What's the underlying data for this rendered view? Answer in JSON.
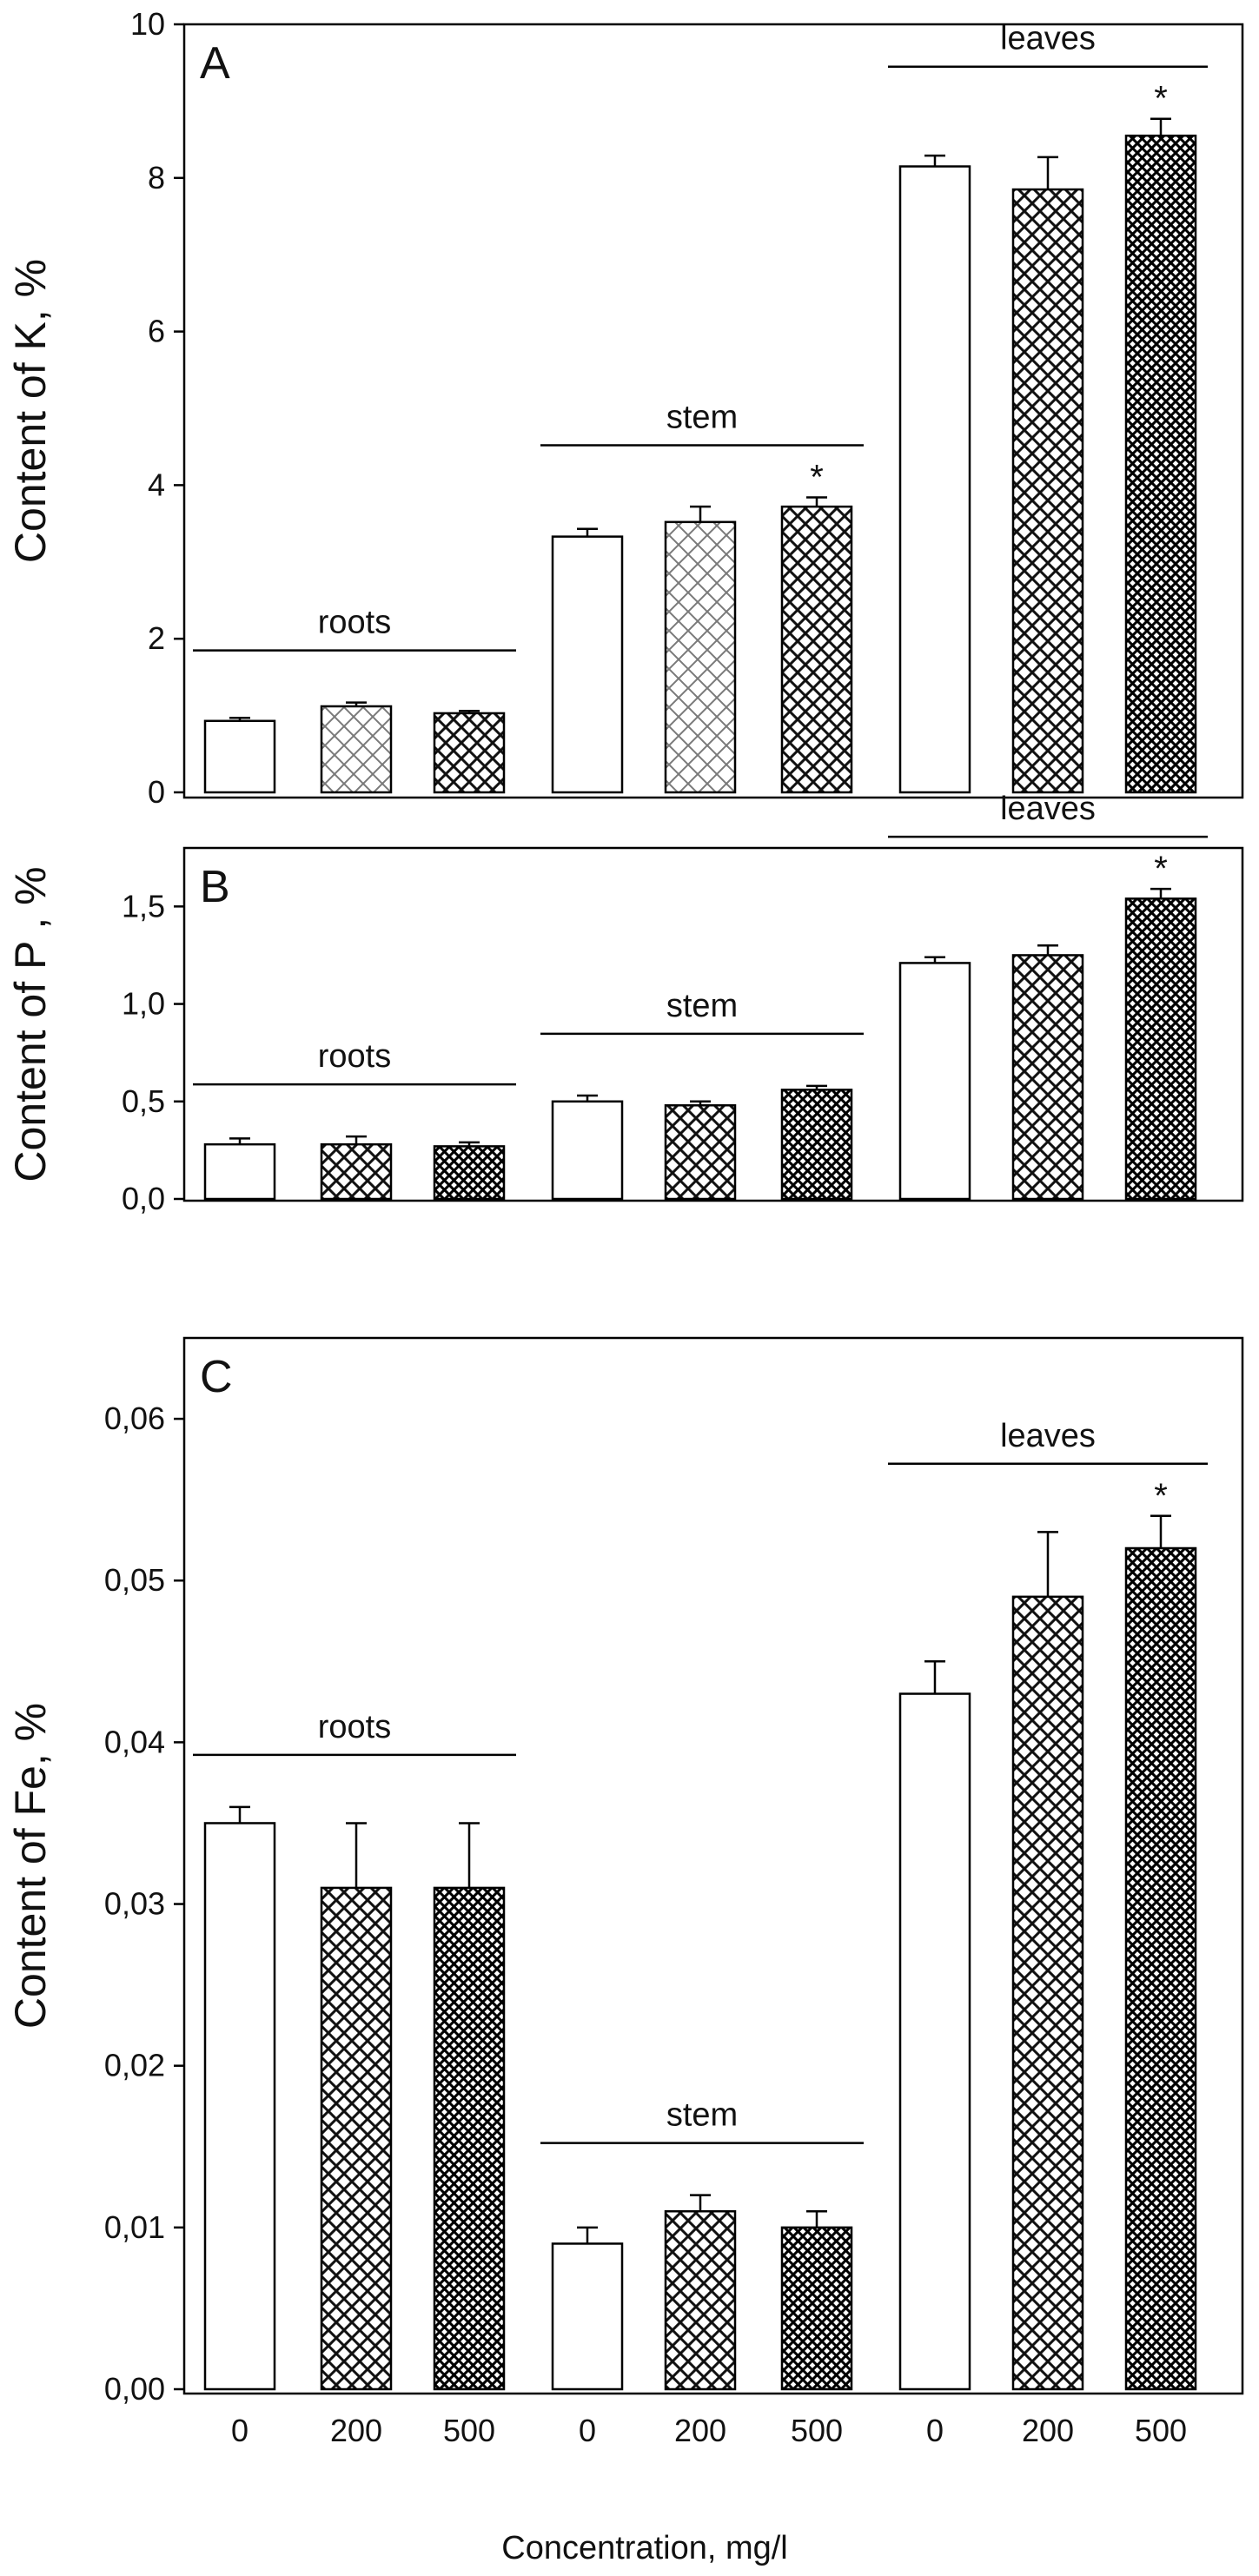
{
  "figure": {
    "x_axis_title": "Concentration, mg/l",
    "x_tick_labels": [
      "0",
      "200",
      "500",
      "0",
      "200",
      "500",
      "0",
      "200",
      "500"
    ],
    "colors": {
      "ink": "#000000",
      "bar_fill": "#ffffff"
    }
  },
  "chart_data": [
    {
      "type": "bar",
      "panel": "A",
      "ylabel": "Content of K, %",
      "ylim": [
        0,
        10
      ],
      "yticks": [
        0,
        2,
        4,
        6,
        8,
        10
      ],
      "ytick_labels": [
        "0",
        "2",
        "4",
        "6",
        "8",
        "10"
      ],
      "groups": [
        {
          "label": "roots",
          "categories": [
            "0",
            "200",
            "500"
          ],
          "values": [
            0.93,
            1.12,
            1.03
          ],
          "errors": [
            0.04,
            0.05,
            0.03
          ],
          "patterns": [
            "none",
            "light",
            "medium"
          ],
          "stars": [
            false,
            false,
            false
          ]
        },
        {
          "label": "stem",
          "categories": [
            "0",
            "200",
            "500"
          ],
          "values": [
            3.33,
            3.52,
            3.72
          ],
          "errors": [
            0.1,
            0.2,
            0.12
          ],
          "patterns": [
            "none",
            "light",
            "medium"
          ],
          "stars": [
            false,
            false,
            true
          ]
        },
        {
          "label": "leaves",
          "categories": [
            "0",
            "200",
            "500"
          ],
          "values": [
            8.15,
            7.85,
            8.55
          ],
          "errors": [
            0.14,
            0.42,
            0.22
          ],
          "patterns": [
            "none",
            "medium",
            "dense"
          ],
          "stars": [
            false,
            false,
            true
          ]
        }
      ]
    },
    {
      "type": "bar",
      "panel": "B",
      "ylabel": "Content of P , %",
      "ylim": [
        0,
        1.8
      ],
      "yticks": [
        0,
        0.5,
        1.0,
        1.5
      ],
      "ytick_labels": [
        "0,0",
        "0,5",
        "1,0",
        "1,5"
      ],
      "groups": [
        {
          "label": "roots",
          "categories": [
            "0",
            "200",
            "500"
          ],
          "values": [
            0.28,
            0.28,
            0.27
          ],
          "errors": [
            0.03,
            0.04,
            0.02
          ],
          "patterns": [
            "none",
            "medium",
            "dense"
          ],
          "stars": [
            false,
            false,
            false
          ]
        },
        {
          "label": "stem",
          "categories": [
            "0",
            "200",
            "500"
          ],
          "values": [
            0.5,
            0.48,
            0.56
          ],
          "errors": [
            0.03,
            0.02,
            0.02
          ],
          "patterns": [
            "none",
            "medium",
            "dense"
          ],
          "stars": [
            false,
            false,
            false
          ]
        },
        {
          "label": "leaves",
          "categories": [
            "0",
            "200",
            "500"
          ],
          "values": [
            1.21,
            1.25,
            1.54
          ],
          "errors": [
            0.03,
            0.05,
            0.05
          ],
          "patterns": [
            "none",
            "medium",
            "dense"
          ],
          "stars": [
            false,
            false,
            true
          ]
        }
      ]
    },
    {
      "type": "bar",
      "panel": "C",
      "ylabel": "Content of Fe, %",
      "ylim": [
        0,
        0.065
      ],
      "yticks": [
        0,
        0.01,
        0.02,
        0.03,
        0.04,
        0.05,
        0.06
      ],
      "ytick_labels": [
        "0,00",
        "0,01",
        "0,02",
        "0,03",
        "0,04",
        "0,05",
        "0,06"
      ],
      "groups": [
        {
          "label": "roots",
          "categories": [
            "0",
            "200",
            "500"
          ],
          "values": [
            0.035,
            0.031,
            0.031
          ],
          "errors": [
            0.001,
            0.004,
            0.004
          ],
          "patterns": [
            "none",
            "medium",
            "dense"
          ],
          "stars": [
            false,
            false,
            false
          ]
        },
        {
          "label": "stem",
          "categories": [
            "0",
            "200",
            "500"
          ],
          "values": [
            0.009,
            0.011,
            0.01
          ],
          "errors": [
            0.001,
            0.001,
            0.001
          ],
          "patterns": [
            "none",
            "medium",
            "dense"
          ],
          "stars": [
            false,
            false,
            false
          ]
        },
        {
          "label": "leaves",
          "categories": [
            "0",
            "200",
            "500"
          ],
          "values": [
            0.043,
            0.049,
            0.052
          ],
          "errors": [
            0.002,
            0.004,
            0.002
          ],
          "patterns": [
            "none",
            "medium",
            "dense"
          ],
          "stars": [
            false,
            false,
            true
          ]
        }
      ]
    }
  ]
}
